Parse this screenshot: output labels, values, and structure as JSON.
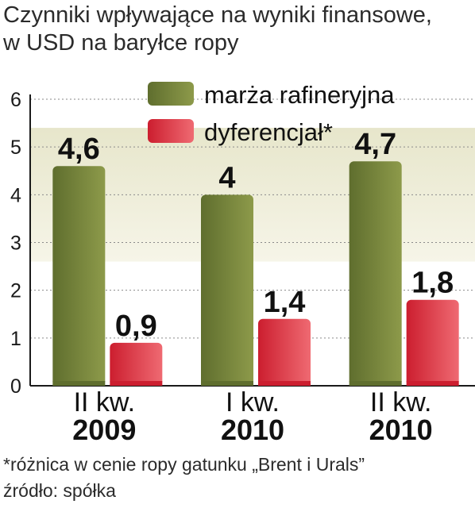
{
  "title_lines": [
    "Czynniki wpływające na wyniki finansowe,",
    "w USD na baryłce ropy"
  ],
  "colors": {
    "series_1": "#5f6e2e",
    "series_1_light": "#8d9a4a",
    "series_2": "#cc1e2f",
    "series_2_light": "#ef6a72",
    "plot_band_top": "#e7e6cb",
    "plot_band_bottom": "#f6f5e8",
    "axis": "#1a1a1a"
  },
  "chart_data": {
    "type": "bar",
    "categories": [
      [
        "II kw.",
        "2009"
      ],
      [
        "I kw.",
        "2010"
      ],
      [
        "II kw.",
        "2010"
      ]
    ],
    "series": [
      {
        "name": "marża rafineryjna",
        "values": [
          4.6,
          4,
          4.7
        ],
        "labels": [
          "4,6",
          "4",
          "4,7"
        ]
      },
      {
        "name": "dyferencjał*",
        "values": [
          0.9,
          1.4,
          1.8
        ],
        "labels": [
          "0,9",
          "1,4",
          "1,8"
        ]
      }
    ],
    "y_ticks": [
      "0",
      "1",
      "2",
      "3",
      "4",
      "5",
      "6"
    ],
    "ylim": [
      0,
      6
    ],
    "grid": true,
    "legend_position": "top-right"
  },
  "footnotes": [
    "*różnica w cenie ropy gatunku „Brent i Urals”",
    "źródło: spółka"
  ]
}
